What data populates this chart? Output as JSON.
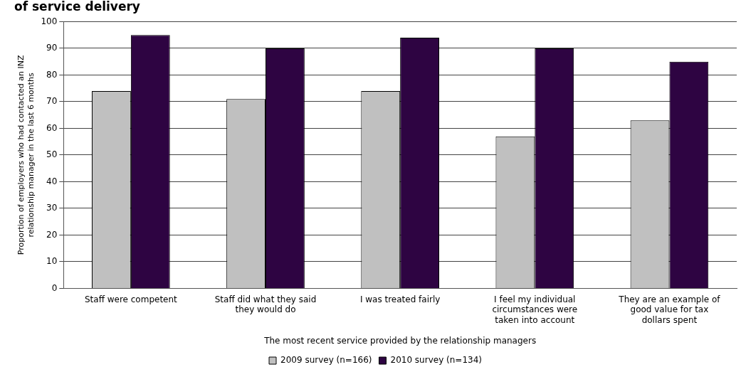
{
  "chart_data": {
    "type": "bar",
    "title": "of service delivery",
    "xlabel": "The most recent service provided by the relationship managers",
    "ylabel": "Proportion of employers who had contacted an INZ relationship manager in the last 6 months",
    "categories": [
      "Staff were competent",
      "Staff did what they said they would do",
      "I was treated fairly",
      "I feel my individual circumstances were taken into account",
      "They are an example of good value for tax dollars spent"
    ],
    "series": [
      {
        "name": "2009 survey (n=166)",
        "color": "#c0c0c0",
        "values": [
          74,
          71,
          74,
          57,
          63
        ]
      },
      {
        "name": "2010 survey (n=134)",
        "color": "#2e0442",
        "values": [
          95,
          90,
          94,
          90,
          85
        ]
      }
    ],
    "ylim": [
      0,
      100
    ],
    "yticks": [
      0,
      10,
      20,
      30,
      40,
      50,
      60,
      70,
      80,
      90,
      100
    ],
    "grid": "y",
    "legend": "bottom"
  }
}
